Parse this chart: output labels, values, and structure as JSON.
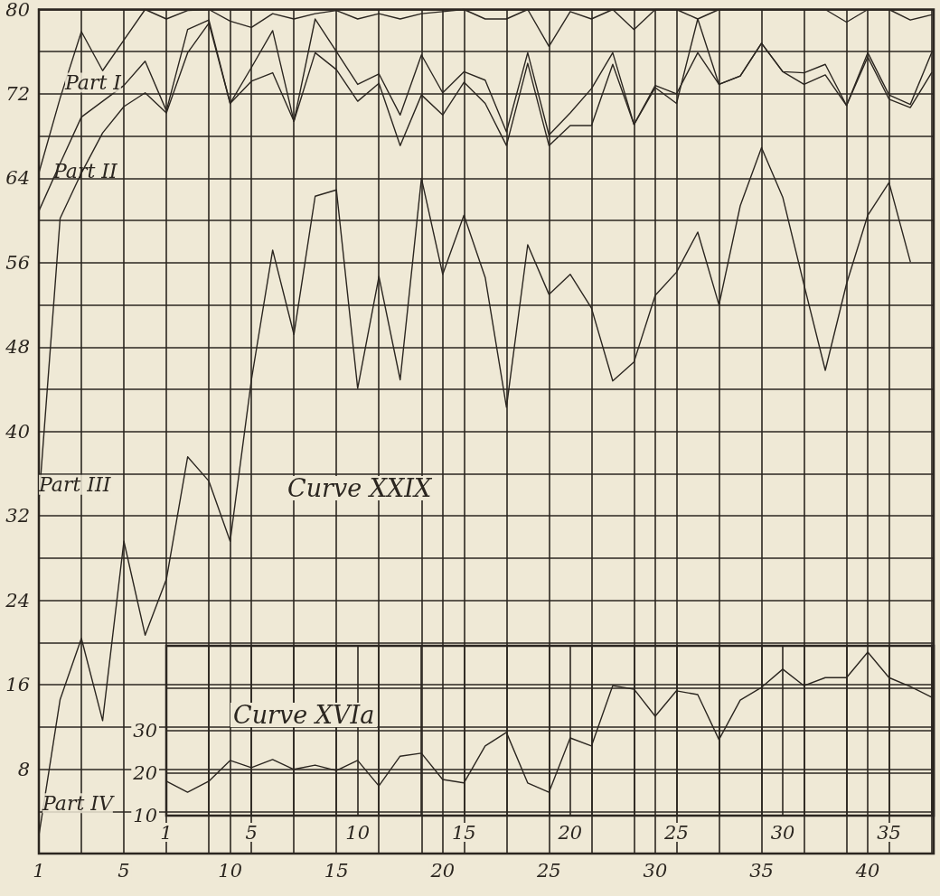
{
  "chart_data": [
    {
      "type": "line",
      "title": "Curve XXIX",
      "x": [
        1,
        2,
        3,
        4,
        5,
        6,
        7,
        8,
        9,
        10,
        11,
        12,
        13,
        14,
        15,
        16,
        17,
        18,
        19,
        20,
        21,
        22,
        23,
        24,
        25,
        26,
        27,
        28,
        29,
        30,
        31,
        32,
        33,
        34,
        35,
        36,
        37,
        38,
        39,
        40,
        41,
        42,
        43
      ],
      "series": [
        {
          "name": "Part I",
          "color": "#2b2620",
          "values": [
            64.5,
            71.6,
            77.9,
            74.2,
            77.1,
            80,
            79.1,
            79.9,
            80,
            78.9,
            78.3,
            79.6,
            79.1,
            79.6,
            79.9,
            79.1,
            79.6,
            79.1,
            79.6,
            79.8,
            80,
            79.1,
            79.1,
            80,
            76.5,
            79.8,
            79.1,
            80,
            78.1,
            80,
            80,
            79.1,
            80,
            80,
            80,
            80,
            80,
            80,
            78.8,
            80,
            80,
            79,
            79.5
          ]
        },
        {
          "name": "Part II",
          "color": "#2b2620",
          "values": [
            60.9,
            65.4,
            69.8,
            71.3,
            72.8,
            75.1,
            70.4,
            78.1,
            79,
            71.1,
            74.5,
            78,
            69.4,
            79.1,
            76,
            72.9,
            73.9,
            70,
            75.7,
            72.1,
            74.1,
            73.3,
            68.4,
            75.9,
            68.1,
            70.2,
            72.5,
            75.9,
            69.1,
            72.8,
            72,
            75.9,
            72.9,
            73.7,
            76.8,
            74.1,
            74,
            74.8,
            70.9,
            75.9,
            71.9,
            71,
            75.9
          ]
        },
        {
          "name": "Part III",
          "color": "#2b2620",
          "values": [
            33.4,
            60.2,
            64.5,
            68.3,
            70.8,
            72.1,
            70.2,
            75.9,
            78.7,
            71.1,
            73.2,
            74,
            69.4,
            75.9,
            74.3,
            71.3,
            73,
            67.1,
            71.9,
            70,
            73.1,
            71.1,
            67.1,
            74.9,
            67.1,
            69,
            69,
            74.8,
            69.1,
            72.6,
            71.1,
            79.1,
            72.9,
            73.7,
            76.8,
            74.1,
            72.9,
            73.8,
            70.9,
            75.5,
            71.5,
            70.7,
            74
          ]
        },
        {
          "name": "Part IV",
          "color": "#2b2620",
          "values": [
            1.7,
            14.6,
            20.4,
            12.6,
            29.6,
            20.7,
            26,
            37.6,
            35.3,
            29.6,
            44.9,
            57.2,
            49.2,
            62.3,
            62.9,
            44.1,
            54.7,
            44.9,
            64,
            54.9,
            60.5,
            54.6,
            42.3,
            57.7,
            53,
            54.9,
            51.7,
            44.8,
            46.6,
            52.9,
            55.1,
            58.9,
            52,
            61.4,
            66.9,
            62.2,
            53.9,
            45.8,
            54,
            60.5,
            63.6,
            56.1,
            null
          ]
        }
      ],
      "xlim": [
        1,
        43.1
      ],
      "xticks": [
        1,
        {
          "value": 3,
          "label": null
        },
        5,
        {
          "value": 7,
          "label": null
        },
        {
          "value": 9,
          "label": null
        },
        10,
        {
          "value": 11,
          "label": null
        },
        {
          "value": 13,
          "label": null
        },
        15,
        {
          "value": 17,
          "label": null
        },
        {
          "value": 19,
          "label": null
        },
        20,
        {
          "value": 21,
          "label": null
        },
        {
          "value": 23,
          "label": null
        },
        25,
        {
          "value": 27,
          "label": null
        },
        {
          "value": 29,
          "label": null
        },
        30,
        {
          "value": 31,
          "label": null
        },
        {
          "value": 33,
          "label": null
        },
        35,
        {
          "value": 37,
          "label": null
        },
        {
          "value": 39,
          "label": null
        },
        40,
        {
          "value": 41,
          "label": null
        },
        {
          "value": 43,
          "label": null
        }
      ],
      "ylim": [
        0,
        80
      ],
      "yticks": [
        {
          "value": 0,
          "label": null
        },
        {
          "value": 4,
          "label": null
        },
        8,
        {
          "value": 12,
          "label": null
        },
        16,
        {
          "value": 20,
          "label": null
        },
        24,
        {
          "value": 28,
          "label": null
        },
        32,
        {
          "value": 36,
          "label": null
        },
        40,
        {
          "value": 44,
          "label": null
        },
        48,
        {
          "value": 52,
          "label": null
        },
        56,
        {
          "value": 60,
          "label": null
        },
        64,
        {
          "value": 68,
          "label": null
        },
        72,
        {
          "value": 76,
          "label": null
        },
        80
      ],
      "grid": true,
      "legend": false,
      "marker": "none",
      "line_style": "solid"
    },
    {
      "type": "line",
      "title": "Curve XVIa",
      "x": [
        1,
        2,
        3,
        4,
        5,
        6,
        7,
        8,
        9,
        10,
        11,
        12,
        13,
        14,
        15,
        16,
        17,
        18,
        19,
        20,
        21,
        22,
        23,
        24,
        25,
        26,
        27,
        28,
        29,
        30,
        31,
        32,
        33,
        34,
        35,
        36,
        37
      ],
      "series": [
        {
          "color": "#2b2620",
          "values": [
            18.1,
            15.5,
            18.1,
            23,
            21.3,
            23.2,
            20.9,
            21.9,
            20.6,
            23,
            17,
            24,
            24.7,
            18.5,
            17.7,
            26.4,
            29.6,
            17.7,
            15.5,
            28.3,
            26.4,
            40.6,
            39.8,
            33.4,
            39.4,
            38.5,
            27.9,
            37.2,
            40.2,
            44.5,
            40.6,
            42.5,
            42.5,
            48.5,
            42.5,
            40.4,
            37.9
          ]
        }
      ],
      "xlim": [
        1,
        37.1
      ],
      "xticks": [
        1,
        {
          "value": 3,
          "label": null
        },
        5,
        {
          "value": 7,
          "label": null
        },
        {
          "value": 9,
          "label": null
        },
        10,
        {
          "value": 11,
          "label": null
        },
        {
          "value": 13,
          "label": null
        },
        15,
        {
          "value": 17,
          "label": null
        },
        {
          "value": 19,
          "label": null
        },
        20,
        {
          "value": 21,
          "label": null
        },
        {
          "value": 23,
          "label": null
        },
        25,
        {
          "value": 27,
          "label": null
        },
        {
          "value": 29,
          "label": null
        },
        30,
        {
          "value": 31,
          "label": null
        },
        {
          "value": 33,
          "label": null
        },
        35,
        {
          "value": 37,
          "label": null
        }
      ],
      "ylim": [
        10,
        50
      ],
      "yticks": [
        10,
        20,
        30,
        {
          "value": 40,
          "label": null
        },
        {
          "value": 50,
          "label": null
        }
      ],
      "grid": true,
      "legend": false,
      "marker": "none",
      "line_style": "solid"
    }
  ]
}
